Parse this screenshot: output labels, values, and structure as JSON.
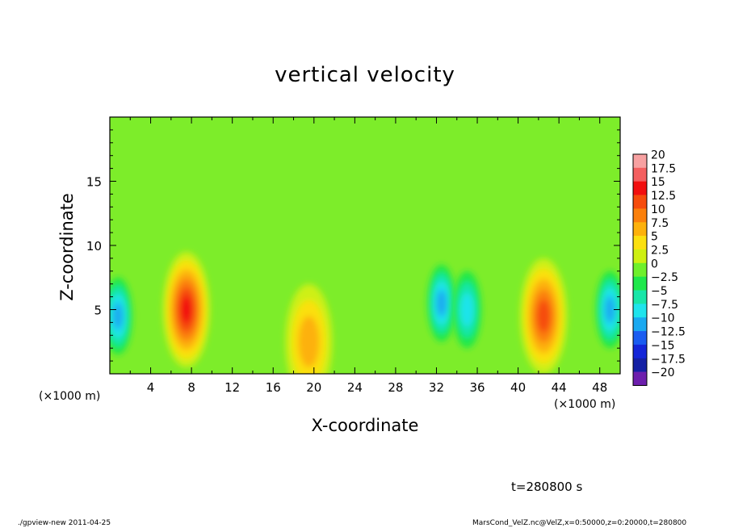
{
  "chart_data": {
    "type": "heatmap",
    "title": "vertical velocity",
    "xlabel": "X-coordinate",
    "ylabel": "Z-coordinate",
    "x_unit_label": "(×1000 m)",
    "xlim": [
      0,
      50
    ],
    "ylim": [
      0,
      20
    ],
    "x_ticks": [
      4,
      8,
      12,
      16,
      20,
      24,
      28,
      32,
      36,
      40,
      44,
      48
    ],
    "y_ticks": [
      5,
      10,
      15
    ],
    "colorbar": {
      "labels": [
        "20",
        "17.5",
        "15",
        "12.5",
        "10",
        "7.5",
        "5",
        "2.5",
        "0",
        "−2.5",
        "−5",
        "−7.5",
        "−10",
        "−12.5",
        "−15",
        "−17.5",
        "−20"
      ],
      "colors_high_to_low": [
        "#f7a1a1",
        "#f45f5f",
        "#f20f0f",
        "#f64c0c",
        "#fb800b",
        "#fdb10b",
        "#fbe00f",
        "#cef012",
        "#6ff02c",
        "#1fe84b",
        "#18e6a8",
        "#1fe4ec",
        "#1aa9f0",
        "#1a5cf0",
        "#1426d8",
        "#1420a4",
        "#6d1fad"
      ]
    },
    "features": [
      {
        "sign": "positive",
        "x_center": 7.5,
        "z_center": 5,
        "peak": 15
      },
      {
        "sign": "positive",
        "x_center": 42.5,
        "z_center": 4.5,
        "peak": 13
      },
      {
        "sign": "positive",
        "x_center": 19.5,
        "z_center": 2.5,
        "peak": 7.5
      },
      {
        "sign": "negative",
        "x_center": 0.8,
        "z_center": 4.5,
        "peak": -11
      },
      {
        "sign": "negative",
        "x_center": 32.5,
        "z_center": 5.5,
        "peak": -9
      },
      {
        "sign": "negative",
        "x_center": 35,
        "z_center": 5,
        "peak": -7
      },
      {
        "sign": "negative",
        "x_center": 49,
        "z_center": 5,
        "peak": -9
      }
    ]
  },
  "annotations": {
    "time": "t=280800 s",
    "footer_left": "./gpview-new   2011-04-25",
    "footer_right": "MarsCond_VelZ.nc@VelZ,x=0:50000,z=0:20000,t=280800"
  }
}
